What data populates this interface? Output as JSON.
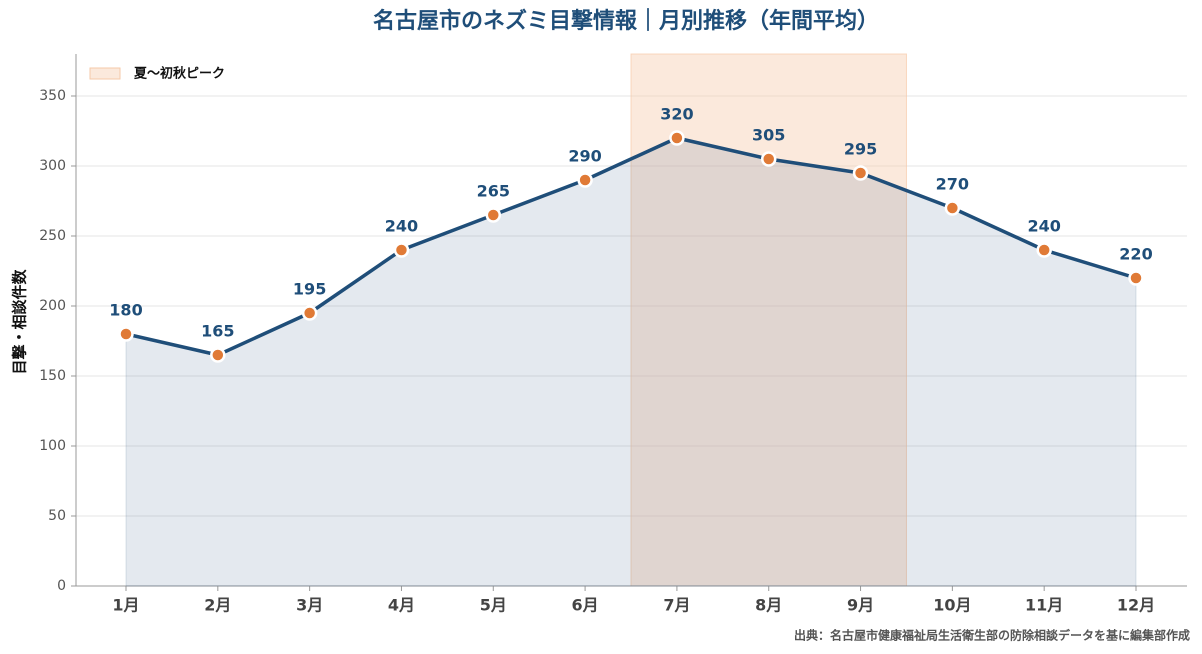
{
  "chart_data": {
    "type": "line",
    "title": "名古屋市のネズミ目撃情報｜月別推移（年間平均）",
    "y_label": "目撃・相談件数",
    "source": "出典：名古屋市健康福祉局生活衛生部の防除相談データを基に編集部作成",
    "categories": [
      "1月",
      "2月",
      "3月",
      "4月",
      "5月",
      "6月",
      "7月",
      "8月",
      "9月",
      "10月",
      "11月",
      "12月"
    ],
    "series": [
      {
        "name": "目撃・相談件数",
        "color": "#1f4e79",
        "marker_color": "#e07a36",
        "values": [
          180,
          165,
          195,
          240,
          265,
          290,
          320,
          305,
          295,
          270,
          240,
          220
        ]
      }
    ],
    "highlight": {
      "label": "夏〜初秋ピーク",
      "from": "7月",
      "to": "9月",
      "color": "#f6c9a8"
    },
    "ylim": [
      0,
      380
    ],
    "yticks": [
      0,
      50,
      100,
      150,
      200,
      250,
      300,
      350
    ],
    "grid": true
  }
}
